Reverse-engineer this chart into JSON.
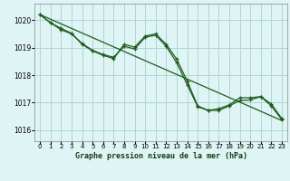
{
  "background_color": "#dff4f4",
  "grid_color": "#b0d5d5",
  "line_color": "#1e5c1e",
  "title": "Graphe pression niveau de la mer (hPa)",
  "xlim": [
    -0.5,
    23.5
  ],
  "ylim": [
    1015.6,
    1020.6
  ],
  "yticks": [
    1016,
    1017,
    1018,
    1019,
    1020
  ],
  "xticks": [
    0,
    1,
    2,
    3,
    4,
    5,
    6,
    7,
    8,
    9,
    10,
    11,
    12,
    13,
    14,
    15,
    16,
    17,
    18,
    19,
    20,
    21,
    22,
    23
  ],
  "trend_x": [
    0,
    23
  ],
  "trend_y": [
    1020.2,
    1016.35
  ],
  "series2_x": [
    0,
    1,
    2,
    3,
    4,
    5,
    6,
    7,
    8,
    9,
    10,
    11,
    12,
    13,
    14,
    15,
    16,
    17,
    18,
    19,
    20,
    21,
    22,
    23
  ],
  "series2_y": [
    1020.2,
    1019.9,
    1019.65,
    1019.5,
    1019.15,
    1018.9,
    1018.75,
    1018.65,
    1019.05,
    1018.95,
    1019.38,
    1019.45,
    1019.05,
    1018.45,
    1017.65,
    1016.85,
    1016.72,
    1016.72,
    1016.88,
    1017.08,
    1017.1,
    1017.22,
    1016.88,
    1016.38
  ],
  "series3_x": [
    0,
    1,
    2,
    3,
    4,
    5,
    6,
    7,
    8,
    9,
    10,
    11,
    12,
    13,
    14,
    15,
    16,
    17,
    18,
    19,
    20,
    21,
    22,
    23
  ],
  "series3_y": [
    1020.2,
    1019.9,
    1019.7,
    1019.52,
    1019.12,
    1018.88,
    1018.72,
    1018.6,
    1019.12,
    1019.02,
    1019.42,
    1019.5,
    1019.12,
    1018.58,
    1017.78,
    1016.88,
    1016.72,
    1016.78,
    1016.92,
    1017.18,
    1017.18,
    1017.22,
    1016.95,
    1016.42
  ]
}
